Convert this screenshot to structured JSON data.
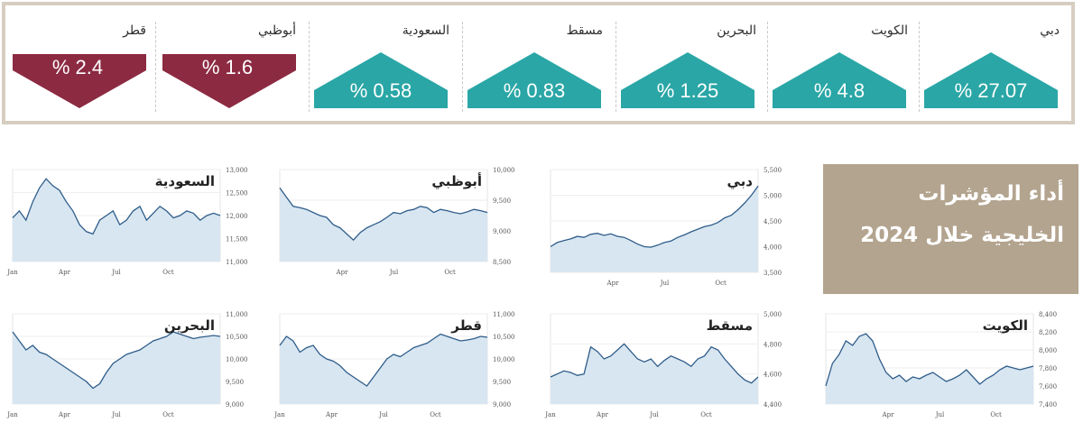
{
  "colors": {
    "up": "#2aa6a6",
    "down": "#8c2a42",
    "line": "#2f5d8a",
    "fill": "#d8e6f1",
    "title_bg": "#b3a48f"
  },
  "indices": [
    {
      "name": "دبي",
      "value": "% 27.07",
      "direction": "up"
    },
    {
      "name": "الكويت",
      "value": "% 4.8",
      "direction": "up"
    },
    {
      "name": "البحرين",
      "value": "% 1.25",
      "direction": "up"
    },
    {
      "name": "مسقط",
      "value": "% 0.83",
      "direction": "up"
    },
    {
      "name": "السعودية",
      "value": "% 0.58",
      "direction": "up"
    },
    {
      "name": "أبوظبي",
      "value": "% 1.6",
      "direction": "down"
    },
    {
      "name": "قطر",
      "value": "% 2.4",
      "direction": "down"
    }
  ],
  "panel_title": {
    "line1": "أداء المؤشرات",
    "line2": "الخليجية خلال 2024"
  },
  "chart_data": [
    {
      "id": "dubai",
      "type": "area",
      "title": "دبي",
      "x_ticks": [
        "Apr",
        "Jul",
        "Oct"
      ],
      "y_ticks": [
        "3,500",
        "4,000",
        "4,500",
        "5,000",
        "5,500"
      ],
      "ylim": [
        3500,
        5500
      ],
      "values": [
        4000,
        4080,
        4120,
        4150,
        4200,
        4180,
        4240,
        4260,
        4220,
        4250,
        4200,
        4180,
        4120,
        4050,
        4000,
        3990,
        4030,
        4080,
        4110,
        4180,
        4230,
        4290,
        4340,
        4390,
        4420,
        4470,
        4560,
        4610,
        4720,
        4850,
        5000,
        5180
      ]
    },
    {
      "id": "abudhabi",
      "type": "area",
      "title": "أبوظبي",
      "x_ticks": [
        "Apr",
        "Jul",
        "Oct"
      ],
      "y_ticks": [
        "8,500",
        "9,000",
        "9,500",
        "10,000"
      ],
      "ylim": [
        8500,
        10000
      ],
      "values": [
        9700,
        9550,
        9400,
        9380,
        9350,
        9300,
        9250,
        9220,
        9100,
        9050,
        8950,
        8850,
        8970,
        9050,
        9100,
        9150,
        9220,
        9300,
        9280,
        9330,
        9350,
        9400,
        9380,
        9300,
        9350,
        9330,
        9300,
        9280,
        9310,
        9350,
        9330,
        9300
      ]
    },
    {
      "id": "saudi",
      "type": "area",
      "title": "السعودية",
      "x_ticks": [
        "Jan",
        "Apr",
        "Jul",
        "Oct"
      ],
      "y_ticks": [
        "11,000",
        "11,500",
        "12,000",
        "12,500",
        "13,000"
      ],
      "ylim": [
        11000,
        13000
      ],
      "values": [
        11950,
        12100,
        11900,
        12300,
        12600,
        12800,
        12650,
        12550,
        12300,
        12100,
        11800,
        11650,
        11600,
        11900,
        12000,
        12100,
        11800,
        11900,
        12100,
        12200,
        11900,
        12050,
        12200,
        12100,
        11950,
        12000,
        12100,
        12050,
        11900,
        12000,
        12050,
        12000
      ]
    },
    {
      "id": "kuwait",
      "type": "area",
      "title": "الكويت",
      "x_ticks": [
        "Apr",
        "Jul",
        "Oct"
      ],
      "y_ticks": [
        "7,400",
        "7,600",
        "7,800",
        "8,000",
        "8,200",
        "8,400"
      ],
      "ylim": [
        7400,
        8400
      ],
      "values": [
        7600,
        7850,
        7950,
        8100,
        8050,
        8150,
        8180,
        8100,
        7900,
        7750,
        7680,
        7720,
        7650,
        7700,
        7680,
        7720,
        7750,
        7700,
        7650,
        7680,
        7720,
        7780,
        7700,
        7620,
        7680,
        7720,
        7780,
        7820,
        7800,
        7780,
        7800,
        7820
      ]
    },
    {
      "id": "muscat",
      "type": "area",
      "title": "مسقط",
      "x_ticks": [
        "Jan",
        "Apr",
        "Jul",
        "Oct"
      ],
      "y_ticks": [
        "4,400",
        "4,600",
        "4,800",
        "5,000"
      ],
      "ylim": [
        4400,
        5000
      ],
      "values": [
        4580,
        4600,
        4620,
        4610,
        4590,
        4600,
        4780,
        4750,
        4700,
        4720,
        4760,
        4800,
        4750,
        4700,
        4680,
        4700,
        4650,
        4690,
        4720,
        4700,
        4680,
        4650,
        4700,
        4720,
        4780,
        4760,
        4700,
        4650,
        4600,
        4560,
        4540,
        4580
      ]
    },
    {
      "id": "qatar",
      "type": "area",
      "title": "قطر",
      "x_ticks": [
        "Jan",
        "Apr",
        "Jul",
        "Oct"
      ],
      "y_ticks": [
        "9,000",
        "9,500",
        "10,000",
        "10,500",
        "11,000"
      ],
      "ylim": [
        9000,
        11000
      ],
      "values": [
        10300,
        10500,
        10400,
        10150,
        10250,
        10300,
        10100,
        10000,
        9950,
        9850,
        9700,
        9600,
        9500,
        9400,
        9600,
        9800,
        10000,
        10100,
        10050,
        10150,
        10250,
        10300,
        10350,
        10450,
        10550,
        10500,
        10450,
        10400,
        10420,
        10450,
        10500,
        10480
      ]
    },
    {
      "id": "bahrain",
      "type": "area",
      "title": "البحرين",
      "x_ticks": [
        "Jan",
        "Apr",
        "Jul",
        "Oct"
      ],
      "y_ticks": [
        "9,000",
        "9,500",
        "10,000",
        "10,500",
        "11,000"
      ],
      "ylim": [
        9000,
        11000
      ],
      "values": [
        10600,
        10400,
        10200,
        10300,
        10150,
        10100,
        10000,
        9900,
        9800,
        9700,
        9600,
        9500,
        9350,
        9450,
        9700,
        9900,
        10000,
        10100,
        10150,
        10200,
        10300,
        10400,
        10450,
        10500,
        10600,
        10550,
        10500,
        10450,
        10480,
        10500,
        10520,
        10500
      ]
    }
  ]
}
